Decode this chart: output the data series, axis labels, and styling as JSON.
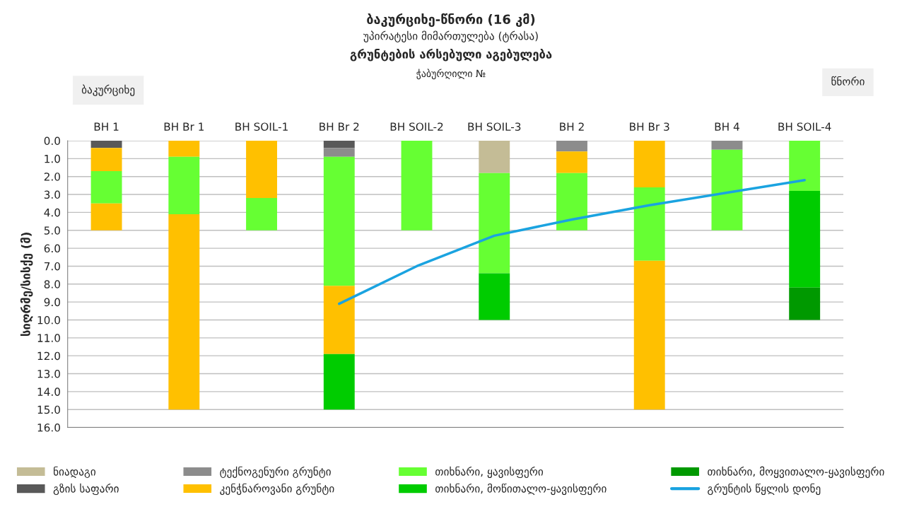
{
  "chart_data": {
    "type": "bar",
    "stacked": true,
    "title": "ბაკურციხე-წნორი (16 კმ)",
    "subtitle": "უპირატესი მიმართულება (ტრასა)",
    "ylabel": "სიღრმე/სისქე (მ)",
    "annotations": [
      "გრუნტების არსებული აგებულება",
      "ჭაბურღილი №",
      "ბაკურციხე",
      "წნორი"
    ],
    "categories": [
      "BH 1",
      "BH Br 1",
      "BH SOIL-1",
      "BH Br 2",
      "BH SOIL-2",
      "BH SOIL-3",
      "BH 2",
      "BH Br 3",
      "BH 4",
      "BH SOIL-4"
    ],
    "series": [
      {
        "name": "ნიადაგი",
        "color": "#c4bc96",
        "values": [
          null,
          null,
          null,
          null,
          null,
          1.8,
          null,
          null,
          null,
          null
        ]
      },
      {
        "name": "გზის საფარი",
        "color": "#595959",
        "values": [
          0.4,
          null,
          null,
          0.4,
          null,
          null,
          null,
          null,
          null,
          null
        ]
      },
      {
        "name": "ტექნოგენური გრუნტი",
        "color": "#8c8c8c",
        "values": [
          null,
          null,
          null,
          0.5,
          null,
          null,
          0.6,
          null,
          0.5,
          null
        ]
      },
      {
        "name": "კენჭნაროვანი გრუნტი",
        "color": "#ffc000",
        "values": [
          1.3,
          0.9,
          3.2,
          null,
          null,
          null,
          1.2,
          2.6,
          null,
          null
        ]
      },
      {
        "name": "თიხნარი, ყავისფერი",
        "color": "#66ff33",
        "values": [
          1.8,
          3.2,
          1.8,
          7.2,
          5.0,
          5.6,
          3.2,
          4.1,
          4.5,
          2.8
        ]
      },
      {
        "color": "#ffc000",
        "values": [
          1.5,
          10.9,
          null,
          3.8,
          null,
          null,
          null,
          8.3,
          null,
          null
        ]
      },
      {
        "name": "თიხნარი, მოწითალო-ყავისფერი",
        "color": "#00cc00",
        "values": [
          null,
          null,
          null,
          3.1,
          null,
          2.6,
          null,
          null,
          null,
          5.4
        ]
      },
      {
        "name": "თიხნარი, მოყვითალო-ყავისფერი",
        "color": "#009900",
        "values": [
          null,
          null,
          null,
          null,
          null,
          null,
          null,
          null,
          null,
          1.8
        ]
      },
      {
        "name": "გრუნტის წყლის დონე",
        "type": "line",
        "color": "#1aa3e0",
        "values": [
          null,
          null,
          null,
          9.1,
          7.0,
          5.3,
          4.4,
          3.6,
          2.9,
          2.2
        ]
      }
    ],
    "ylim": [
      16,
      0
    ],
    "yticks": [
      {
        "value": 0,
        "label": "0.0"
      },
      {
        "value": 1,
        "label": "1.0"
      },
      {
        "value": 2,
        "label": "2.0"
      },
      {
        "value": 3,
        "label": "3.0"
      },
      {
        "value": 4,
        "label": "4.0"
      },
      {
        "value": 5,
        "label": "5.0"
      },
      {
        "value": 6,
        "label": "6.0"
      },
      {
        "value": 7,
        "label": "7.0"
      },
      {
        "value": 8,
        "label": "8.0"
      },
      {
        "value": 9,
        "label": "9.0"
      },
      {
        "value": 10,
        "label": "10.0"
      },
      {
        "value": 11,
        "label": "11.0"
      },
      {
        "value": 12,
        "label": "12.0"
      },
      {
        "value": 13,
        "label": "13.0"
      },
      {
        "value": 14,
        "label": "14.0"
      },
      {
        "value": 15,
        "label": "15.0"
      },
      {
        "value": 16,
        "label": "16.0"
      }
    ],
    "grid": "y",
    "legend": "bottom"
  }
}
